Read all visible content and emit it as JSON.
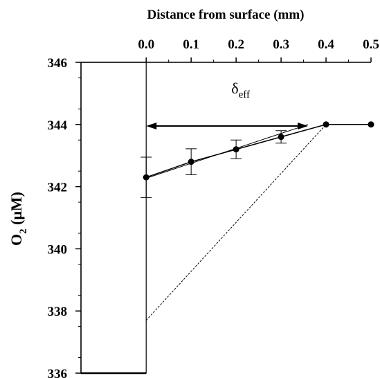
{
  "chart_data": {
    "type": "scatter",
    "title": "",
    "xlabel": "Distance from surface (mm)",
    "ylabel_main": "O",
    "ylabel_sub": "2",
    "ylabel_rest": " (μM)",
    "xlim": [
      -0.145,
      0.5
    ],
    "ylim": [
      336,
      346
    ],
    "x_axis_position": "top",
    "x_ticks": [
      0.0,
      0.1,
      0.2,
      0.3,
      0.4,
      0.5
    ],
    "x_tick_labels": [
      "0.0",
      "0.1",
      "0.2",
      "0.3",
      "0.4",
      "0.5"
    ],
    "y_ticks": [
      336,
      338,
      340,
      342,
      344,
      346
    ],
    "y_tick_labels": [
      "336",
      "338",
      "340",
      "342",
      "344",
      "346"
    ],
    "grid": false,
    "series": [
      {
        "x": [
          0.0,
          0.1,
          0.2,
          0.3,
          0.4,
          0.5
        ],
        "y": [
          342.3,
          342.8,
          343.2,
          343.6,
          344.0,
          344.0
        ],
        "error": [
          0.65,
          0.42,
          0.3,
          0.2,
          0,
          0
        ],
        "connected": true
      }
    ],
    "tangent_line": {
      "x": [
        0.0,
        0.36
      ],
      "y": [
        342.27,
        344.0
      ]
    },
    "dashed_line": {
      "x": [
        0.0,
        0.4
      ],
      "y": [
        337.7,
        344.0
      ]
    },
    "annotation": {
      "symbol": "δ",
      "subscript": "eff",
      "arrow_x": [
        0.0,
        0.36
      ],
      "arrow_y": 343.95,
      "label_x": 0.21,
      "label_y": 345.0
    },
    "diffusion_boundary_layer": {
      "x_start": -0.145,
      "x_end": 0.0
    }
  }
}
